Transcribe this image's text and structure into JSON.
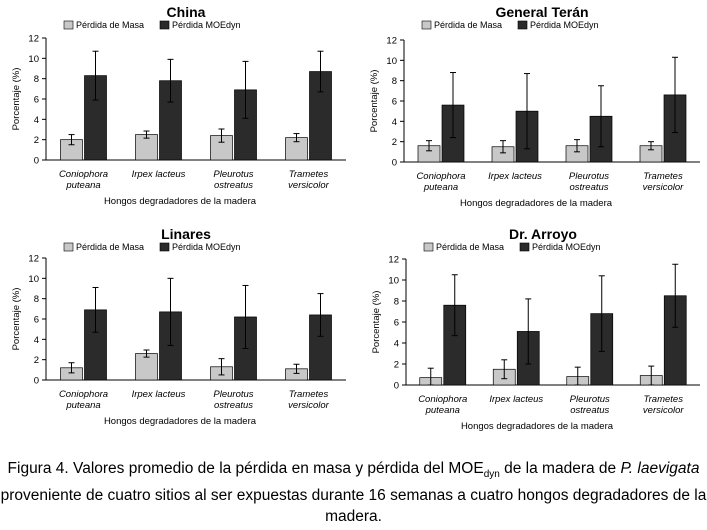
{
  "figure": {
    "caption": {
      "part1": "Figura 4. Valores promedio de la pérdida en masa y pérdida del MOE",
      "sub": "dyn",
      "part2": " de la madera de ",
      "species": "P. laevigata",
      "part3": " proveniente de cuatro sitios al ser expuestas durante 16 semanas a cuatro hongos degradadores de la madera."
    }
  },
  "colors": {
    "masa": "#c8c8c8",
    "moedyn": "#2b2b2b",
    "axis": "#000000"
  },
  "chart_data": [
    {
      "type": "bar",
      "title": "China",
      "xlabel": "Hongos degradadores de la madera",
      "ylabel": "Porcentaje (%)",
      "ylim": [
        0,
        12
      ],
      "yticks": [
        "0",
        "2",
        "4",
        "6",
        "8",
        "10",
        "12"
      ],
      "categories": [
        [
          "Coniophora",
          "puteana"
        ],
        [
          "Irpex lacteus"
        ],
        [
          "Pleurotus",
          "ostreatus"
        ],
        [
          "Trametes",
          "versicolor"
        ]
      ],
      "series": [
        {
          "name": "Pérdida de Masa",
          "values": [
            2.0,
            2.5,
            2.4,
            2.2
          ],
          "errors": [
            0.5,
            0.35,
            0.65,
            0.4
          ]
        },
        {
          "name": "Pérdida MOEdyn",
          "values": [
            8.3,
            7.8,
            6.9,
            8.7
          ],
          "errors": [
            2.4,
            2.1,
            2.8,
            2.0
          ]
        }
      ]
    },
    {
      "type": "bar",
      "title": "General Terán",
      "xlabel": "Hongos degradadores de la madera",
      "ylabel": "Porcentaje (%)",
      "ylim": [
        0,
        12
      ],
      "yticks": [
        "0",
        "2",
        "4",
        "6",
        "8",
        "10",
        "12"
      ],
      "categories": [
        [
          "Coniophora",
          "puteana"
        ],
        [
          "Irpex lacteus"
        ],
        [
          "Pleurotus",
          "ostreatus"
        ],
        [
          "Trametes",
          "versicolor"
        ]
      ],
      "series": [
        {
          "name": "Pérdida de Masa",
          "values": [
            1.6,
            1.5,
            1.6,
            1.6
          ],
          "errors": [
            0.5,
            0.6,
            0.6,
            0.4
          ]
        },
        {
          "name": "Pérdida MOEdyn",
          "values": [
            5.6,
            5.0,
            4.5,
            6.6
          ],
          "errors": [
            3.2,
            3.7,
            3.0,
            3.7
          ]
        }
      ]
    },
    {
      "type": "bar",
      "title": "Linares",
      "xlabel": "Hongos degradadores de la madera",
      "ylabel": "Porcentaje (%)",
      "ylim": [
        0,
        12
      ],
      "yticks": [
        "0",
        "2",
        "4",
        "6",
        "8",
        "10",
        "12"
      ],
      "categories": [
        [
          "Coniophora",
          "puteana"
        ],
        [
          "Irpex lacteus"
        ],
        [
          "Pleurotus",
          "ostreatus"
        ],
        [
          "Trametes",
          "versicolor"
        ]
      ],
      "series": [
        {
          "name": "Pérdida de Masa",
          "values": [
            1.2,
            2.6,
            1.3,
            1.1
          ],
          "errors": [
            0.5,
            0.35,
            0.8,
            0.45
          ]
        },
        {
          "name": "Pérdida MOEdyn",
          "values": [
            6.9,
            6.7,
            6.2,
            6.4
          ],
          "errors": [
            2.2,
            3.3,
            3.1,
            2.1
          ]
        }
      ]
    },
    {
      "type": "bar",
      "title": "Dr. Arroyo",
      "xlabel": "Hongos degradadores de la madera",
      "ylabel": "Porcentaje (%)",
      "ylim": [
        0,
        12
      ],
      "yticks": [
        "0",
        "2",
        "4",
        "6",
        "8",
        "10",
        "12"
      ],
      "categories": [
        [
          "Coniophora",
          "puteana"
        ],
        [
          "Irpex lacteus"
        ],
        [
          "Pleurotus",
          "ostreatus"
        ],
        [
          "Trametes",
          "versicolor"
        ]
      ],
      "series": [
        {
          "name": "Pérdida de Masa",
          "values": [
            0.7,
            1.5,
            0.8,
            0.9
          ],
          "errors": [
            0.9,
            0.9,
            0.9,
            0.9
          ]
        },
        {
          "name": "Pérdida MOEdyn",
          "values": [
            7.6,
            5.1,
            6.8,
            8.5
          ],
          "errors": [
            2.9,
            3.1,
            3.6,
            3.0
          ]
        }
      ]
    }
  ]
}
